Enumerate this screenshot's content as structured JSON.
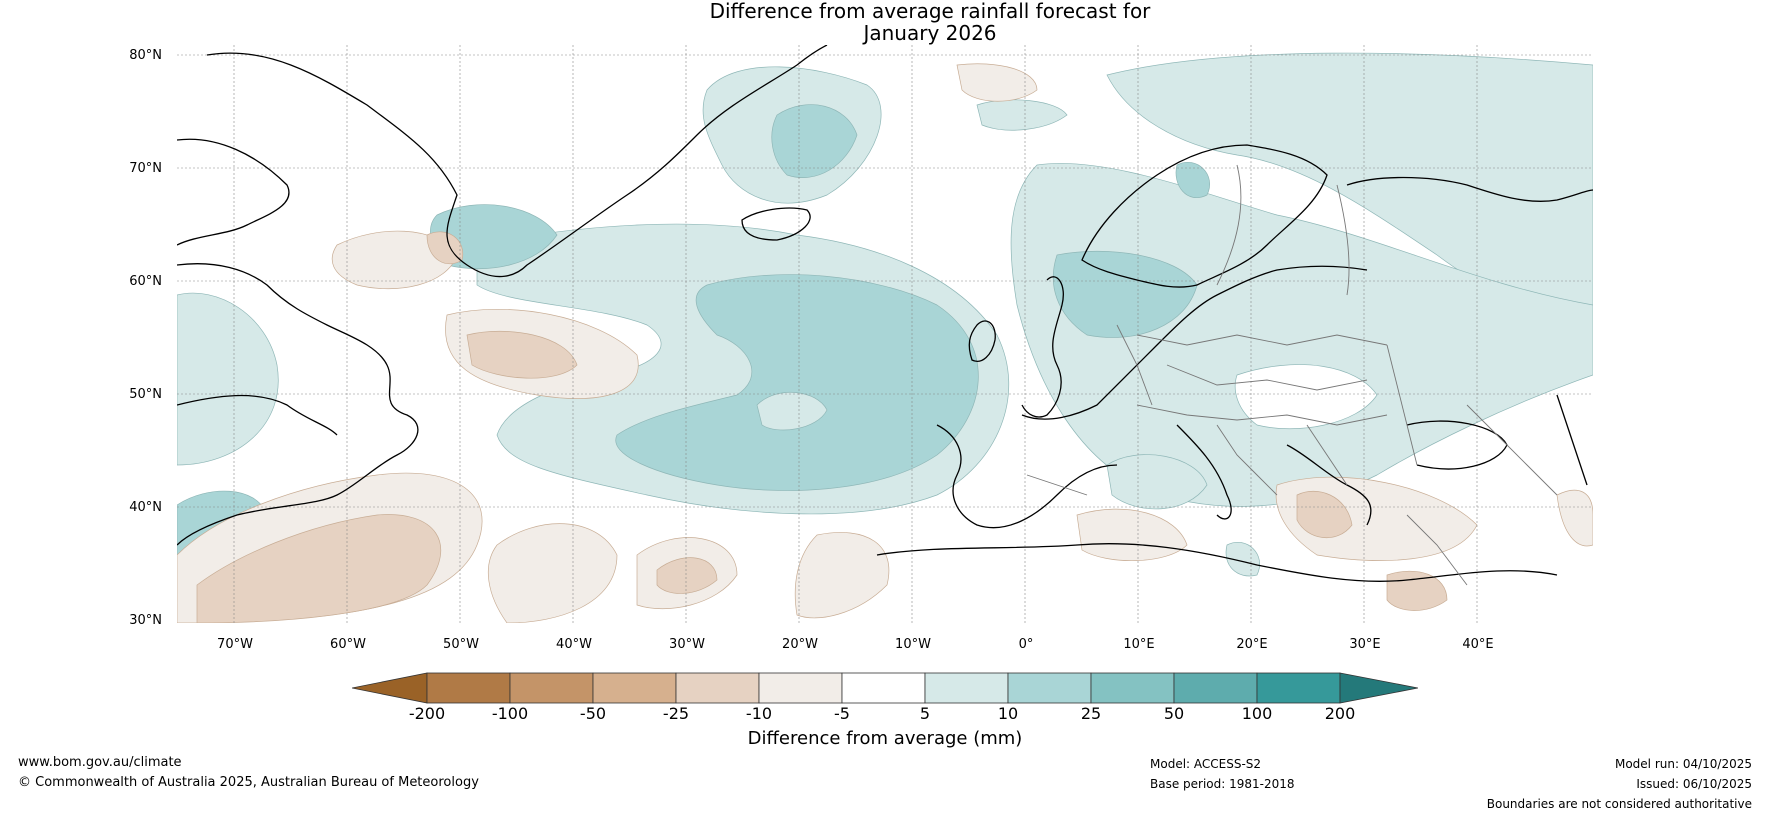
{
  "title": {
    "line1": "Difference from average rainfall forecast for",
    "line2": "January 2026"
  },
  "axes": {
    "lat_labels": [
      "80°N",
      "70°N",
      "60°N",
      "50°N",
      "40°N",
      "30°N"
    ],
    "lon_labels": [
      "70°W",
      "60°W",
      "50°W",
      "40°W",
      "30°W",
      "20°W",
      "10°W",
      "0°",
      "10°E",
      "20°E",
      "30°E",
      "40°E"
    ]
  },
  "colorbar": {
    "label": "Difference from average (mm)",
    "ticks": [
      "-200",
      "-100",
      "-50",
      "-25",
      "-10",
      "-5",
      "5",
      "10",
      "25",
      "50",
      "100",
      "200"
    ],
    "colors": [
      "#9a6227",
      "#b07a46",
      "#c49468",
      "#d6b08e",
      "#e6d2c2",
      "#f2ede8",
      "#ffffff",
      "#d6e9e8",
      "#a9d5d6",
      "#84c2c2",
      "#5eacad",
      "#36999a",
      "#24797a"
    ]
  },
  "footer": {
    "website": "www.bom.gov.au/climate",
    "copyright": "© Commonwealth of Australia 2025, Australian Bureau of Meteorology",
    "model": "Model: ACCESS-S2",
    "base_period": "Base period: 1981-2018",
    "model_run": "Model run: 04/10/2025",
    "issued": "Issued: 06/10/2025",
    "disclaimer": "Boundaries are not considered authoritative"
  }
}
